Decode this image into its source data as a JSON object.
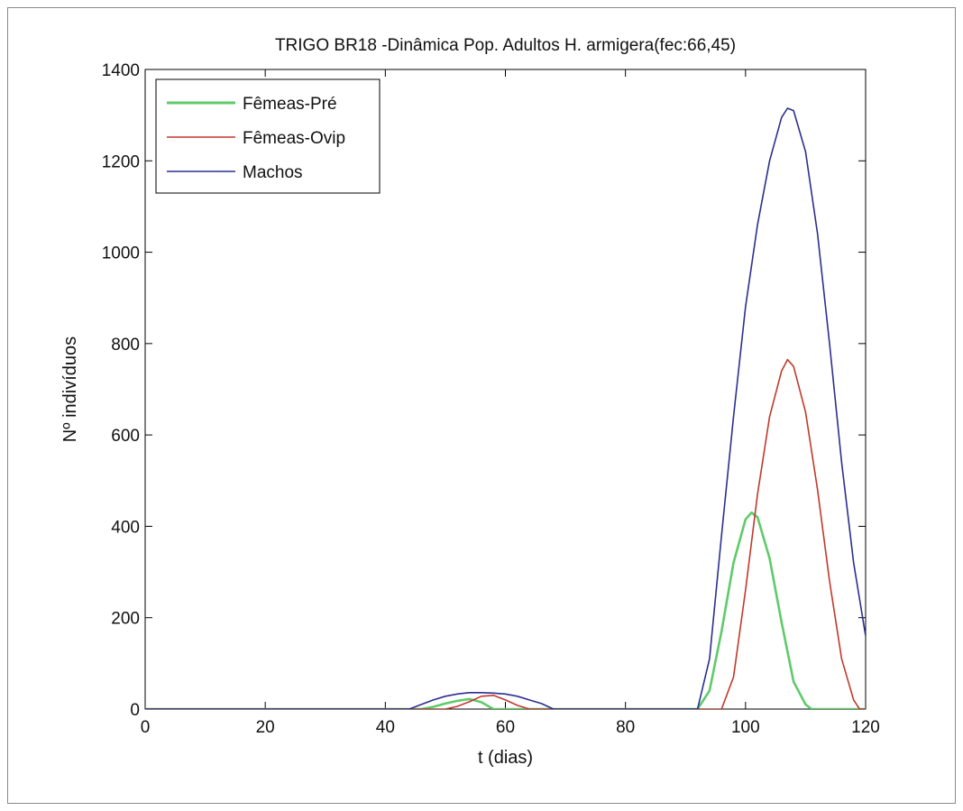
{
  "colors": {
    "femeas_pre": "#5ecb6b",
    "femeas_ovip": "#c0392b",
    "machos": "#2b2f8f",
    "axes": "#000000",
    "frame": "#8a8a8a"
  },
  "chart_data": {
    "type": "line",
    "title": "TRIGO BR18 -Dinâmica Pop. Adultos H. armigera(fec:66,45)",
    "xlabel": "t (dias)",
    "ylabel": "Nº indivíduos",
    "xlim": [
      0,
      120
    ],
    "ylim": [
      0,
      1400
    ],
    "xticks": [
      0,
      20,
      40,
      60,
      80,
      100,
      120
    ],
    "yticks": [
      0,
      200,
      400,
      600,
      800,
      1000,
      1200,
      1400
    ],
    "xtick_labels": [
      "0",
      "20",
      "40",
      "60",
      "80",
      "100",
      "120"
    ],
    "ytick_labels": [
      "0",
      "200",
      "400",
      "600",
      "800",
      "1000",
      "1200",
      "1400"
    ],
    "grid": false,
    "legend_position": "top-left",
    "series": [
      {
        "name": "Fêmeas-Pré",
        "color_key": "femeas_pre",
        "x": [
          0,
          16,
          17,
          46,
          48,
          50,
          52,
          54,
          56,
          58,
          92,
          94,
          96,
          98,
          100,
          101,
          102,
          104,
          106,
          108,
          110,
          111,
          120
        ],
        "y": [
          0,
          0,
          0,
          0,
          5,
          12,
          18,
          22,
          15,
          0,
          0,
          40,
          170,
          320,
          415,
          430,
          420,
          330,
          190,
          60,
          10,
          0,
          0
        ]
      },
      {
        "name": "Fêmeas-Ovip",
        "color_key": "femeas_ovip",
        "x": [
          0,
          16,
          17,
          50,
          52,
          54,
          56,
          58,
          60,
          62,
          64,
          96,
          98,
          100,
          102,
          104,
          106,
          107,
          108,
          110,
          112,
          114,
          116,
          118,
          119,
          120
        ],
        "y": [
          0,
          0,
          0,
          0,
          6,
          16,
          28,
          30,
          20,
          8,
          0,
          0,
          70,
          260,
          470,
          640,
          740,
          765,
          750,
          650,
          480,
          280,
          110,
          20,
          0,
          0
        ]
      },
      {
        "name": "Machos",
        "color_key": "machos",
        "x": [
          0,
          16,
          17,
          44,
          46,
          48,
          50,
          52,
          54,
          56,
          58,
          60,
          62,
          64,
          66,
          68,
          92,
          94,
          96,
          98,
          100,
          102,
          104,
          106,
          107,
          108,
          110,
          112,
          114,
          116,
          118,
          120
        ],
        "y": [
          0,
          0,
          0,
          0,
          10,
          20,
          28,
          33,
          36,
          36,
          35,
          33,
          28,
          20,
          12,
          0,
          0,
          110,
          380,
          640,
          880,
          1060,
          1200,
          1295,
          1315,
          1310,
          1220,
          1040,
          800,
          540,
          320,
          160
        ]
      }
    ]
  }
}
